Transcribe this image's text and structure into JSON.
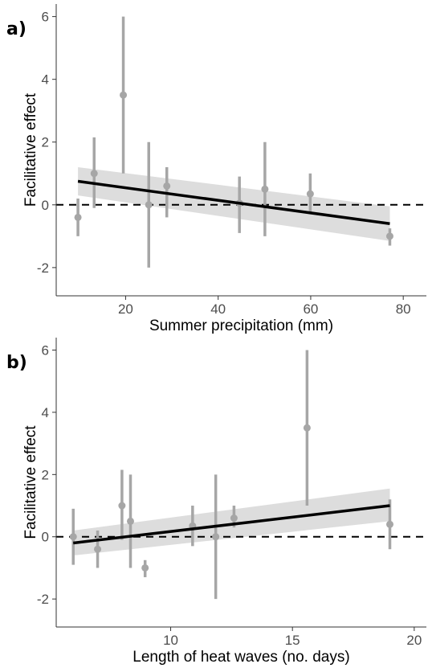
{
  "chart_data": [
    {
      "type": "scatter",
      "panel_label": "a)",
      "xlabel": "Summer precipitation (mm)",
      "ylabel": "Facilitative effect",
      "xlim": [
        5,
        85
      ],
      "ylim": [
        -2.9,
        6.4
      ],
      "xticks": [
        20,
        40,
        60,
        80
      ],
      "yticks": [
        -2,
        0,
        2,
        4,
        6
      ],
      "reference_line": 0,
      "points": [
        {
          "x": 9.7,
          "y": -0.4,
          "ymin": -1.0,
          "ymax": 0.2
        },
        {
          "x": 13.2,
          "y": 1.0,
          "ymin": -0.1,
          "ymax": 2.15
        },
        {
          "x": 19.5,
          "y": 3.5,
          "ymin": 1.0,
          "ymax": 6.0
        },
        {
          "x": 25.0,
          "y": 0.0,
          "ymin": -2.0,
          "ymax": 2.0
        },
        {
          "x": 28.9,
          "y": 0.6,
          "ymin": -0.4,
          "ymax": 1.2
        },
        {
          "x": 44.6,
          "y": 0.05,
          "ymin": -0.9,
          "ymax": 0.9
        },
        {
          "x": 50.1,
          "y": 0.5,
          "ymin": -1.0,
          "ymax": 2.0
        },
        {
          "x": 59.9,
          "y": 0.35,
          "ymin": -0.3,
          "ymax": 1.0
        },
        {
          "x": 77.1,
          "y": -1.0,
          "ymin": -1.3,
          "ymax": -0.75
        }
      ],
      "fit": {
        "x": [
          9.7,
          77.1
        ],
        "y": [
          0.75,
          -0.6
        ],
        "lower": [
          0.3,
          -1.15
        ],
        "upper": [
          1.2,
          -0.05
        ]
      },
      "colors": {
        "points": "#a6a6a6",
        "fit": "#000000",
        "ribbon": "#d9d9d9",
        "axis": "#333333"
      }
    },
    {
      "type": "scatter",
      "panel_label": "b)",
      "xlabel": "Length of heat waves (no. days)",
      "ylabel": "Facilitative effect",
      "xlim": [
        5.3,
        20.5
      ],
      "ylim": [
        -2.9,
        6.4
      ],
      "xticks": [
        10,
        15,
        20
      ],
      "yticks": [
        -2,
        0,
        2,
        4,
        6
      ],
      "reference_line": 0,
      "points": [
        {
          "x": 6.0,
          "y": 0.0,
          "ymin": -0.9,
          "ymax": 0.9
        },
        {
          "x": 7.0,
          "y": -0.4,
          "ymin": -1.0,
          "ymax": 0.2
        },
        {
          "x": 8.0,
          "y": 1.0,
          "ymin": -0.1,
          "ymax": 2.15
        },
        {
          "x": 8.35,
          "y": 0.5,
          "ymin": -1.0,
          "ymax": 2.0
        },
        {
          "x": 8.95,
          "y": -1.0,
          "ymin": -1.3,
          "ymax": -0.75
        },
        {
          "x": 10.9,
          "y": 0.35,
          "ymin": -0.3,
          "ymax": 1.0
        },
        {
          "x": 11.85,
          "y": 0.0,
          "ymin": -2.0,
          "ymax": 2.0
        },
        {
          "x": 12.6,
          "y": 0.6,
          "ymin": 0.3,
          "ymax": 1.0
        },
        {
          "x": 15.6,
          "y": 3.5,
          "ymin": 1.0,
          "ymax": 6.0
        },
        {
          "x": 19.0,
          "y": 0.4,
          "ymin": -0.4,
          "ymax": 1.2
        }
      ],
      "fit": {
        "x": [
          6.0,
          19.0
        ],
        "y": [
          -0.2,
          1.0
        ],
        "lower": [
          -0.6,
          0.5
        ],
        "upper": [
          0.2,
          1.55
        ]
      },
      "colors": {
        "points": "#a6a6a6",
        "fit": "#000000",
        "ribbon": "#d9d9d9",
        "axis": "#333333"
      }
    }
  ]
}
